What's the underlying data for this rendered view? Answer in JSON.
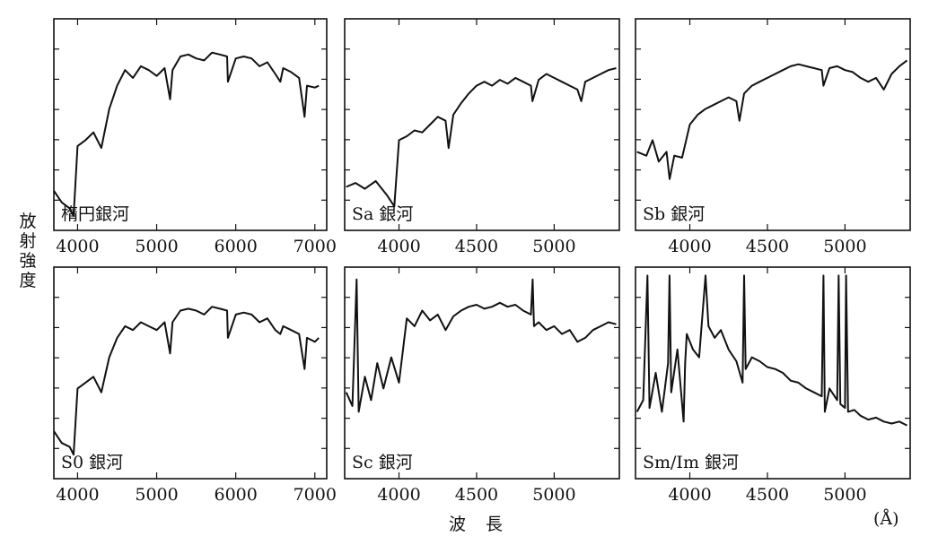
{
  "figure": {
    "ylabel_chars": [
      "放",
      "射",
      "強",
      "度"
    ],
    "xlabel": "波長",
    "xunit": "(Å)"
  },
  "chart_data": [
    {
      "type": "line",
      "label": "楕円銀河",
      "x_ticks": [
        "4000",
        "5000",
        "6000",
        "7000"
      ],
      "x_tick_values": [
        4000,
        5000,
        6000,
        7000
      ],
      "xlim": [
        3700,
        7150
      ],
      "ylim": [
        0,
        1
      ],
      "y_ticks": 6,
      "series": [
        {
          "x": [
            3700,
            3800,
            3900,
            3950,
            4000,
            4100,
            4200,
            4300,
            4400,
            4500,
            4600,
            4700,
            4800,
            4900,
            5000,
            5100,
            5170,
            5200,
            5300,
            5400,
            5500,
            5600,
            5700,
            5800,
            5890,
            5900,
            6000,
            6100,
            6200,
            6300,
            6400,
            6500,
            6563,
            6600,
            6700,
            6800,
            6870,
            6900,
            7000,
            7050
          ],
          "y": [
            0.16,
            0.1,
            0.07,
            0.03,
            0.39,
            0.42,
            0.46,
            0.38,
            0.58,
            0.7,
            0.78,
            0.74,
            0.8,
            0.78,
            0.75,
            0.79,
            0.63,
            0.78,
            0.85,
            0.86,
            0.84,
            0.83,
            0.87,
            0.86,
            0.85,
            0.72,
            0.84,
            0.85,
            0.84,
            0.8,
            0.82,
            0.76,
            0.72,
            0.79,
            0.77,
            0.74,
            0.54,
            0.7,
            0.69,
            0.7
          ]
        }
      ]
    },
    {
      "type": "line",
      "label": "Sa 銀河",
      "x_ticks": [
        "4000",
        "4500",
        "5000"
      ],
      "x_tick_values": [
        4000,
        4500,
        5000
      ],
      "xlim": [
        3650,
        5420
      ],
      "ylim": [
        0,
        1
      ],
      "y_ticks": 6,
      "series": [
        {
          "x": [
            3660,
            3720,
            3780,
            3850,
            3920,
            3970,
            4000,
            4050,
            4100,
            4150,
            4200,
            4250,
            4300,
            4320,
            4350,
            4400,
            4450,
            4500,
            4550,
            4600,
            4650,
            4700,
            4750,
            4800,
            4850,
            4860,
            4900,
            4950,
            5000,
            5050,
            5100,
            5150,
            5175,
            5200,
            5250,
            5300,
            5350,
            5400
          ],
          "y": [
            0.18,
            0.2,
            0.17,
            0.21,
            0.14,
            0.08,
            0.42,
            0.44,
            0.47,
            0.46,
            0.5,
            0.54,
            0.52,
            0.38,
            0.55,
            0.61,
            0.66,
            0.7,
            0.72,
            0.7,
            0.73,
            0.71,
            0.74,
            0.72,
            0.7,
            0.62,
            0.73,
            0.76,
            0.74,
            0.72,
            0.7,
            0.68,
            0.62,
            0.72,
            0.74,
            0.76,
            0.78,
            0.79
          ]
        }
      ]
    },
    {
      "type": "line",
      "label": "Sb 銀河",
      "x_ticks": [
        "4000",
        "4500",
        "5000"
      ],
      "x_tick_values": [
        4000,
        4500,
        5000
      ],
      "xlim": [
        3650,
        5420
      ],
      "ylim": [
        0,
        1
      ],
      "y_ticks": 6,
      "series": [
        {
          "x": [
            3660,
            3720,
            3760,
            3800,
            3850,
            3870,
            3900,
            3950,
            4000,
            4050,
            4100,
            4150,
            4200,
            4250,
            4300,
            4320,
            4350,
            4400,
            4450,
            4500,
            4550,
            4600,
            4650,
            4700,
            4750,
            4800,
            4850,
            4861,
            4900,
            4950,
            5000,
            5050,
            5100,
            5150,
            5200,
            5250,
            5300,
            5350,
            5400
          ],
          "y": [
            0.36,
            0.34,
            0.42,
            0.31,
            0.36,
            0.22,
            0.34,
            0.33,
            0.5,
            0.55,
            0.58,
            0.6,
            0.62,
            0.64,
            0.62,
            0.52,
            0.66,
            0.7,
            0.72,
            0.74,
            0.76,
            0.78,
            0.8,
            0.81,
            0.8,
            0.79,
            0.78,
            0.7,
            0.79,
            0.8,
            0.78,
            0.77,
            0.74,
            0.72,
            0.74,
            0.68,
            0.76,
            0.8,
            0.83
          ]
        }
      ]
    },
    {
      "type": "line",
      "label": "S0 銀河",
      "x_ticks": [
        "4000",
        "5000",
        "6000",
        "7000"
      ],
      "x_tick_values": [
        4000,
        5000,
        6000,
        7000
      ],
      "xlim": [
        3700,
        7150
      ],
      "ylim": [
        0,
        1
      ],
      "y_ticks": 6,
      "series": [
        {
          "x": [
            3700,
            3800,
            3900,
            3950,
            4000,
            4100,
            4200,
            4300,
            4400,
            4500,
            4600,
            4700,
            4800,
            4900,
            5000,
            5100,
            5170,
            5200,
            5300,
            5400,
            5500,
            5600,
            5700,
            5800,
            5890,
            5900,
            6000,
            6100,
            6200,
            6300,
            6400,
            6500,
            6563,
            6600,
            6700,
            6800,
            6870,
            6900,
            7000,
            7050
          ],
          "y": [
            0.2,
            0.14,
            0.12,
            0.08,
            0.42,
            0.45,
            0.48,
            0.4,
            0.58,
            0.68,
            0.74,
            0.72,
            0.76,
            0.74,
            0.72,
            0.76,
            0.6,
            0.76,
            0.82,
            0.83,
            0.82,
            0.8,
            0.84,
            0.83,
            0.82,
            0.68,
            0.8,
            0.81,
            0.8,
            0.76,
            0.78,
            0.72,
            0.7,
            0.74,
            0.72,
            0.7,
            0.52,
            0.68,
            0.66,
            0.68
          ]
        }
      ]
    },
    {
      "type": "line",
      "label": "Sc 銀河",
      "x_ticks": [
        "4000",
        "4500",
        "5000"
      ],
      "x_tick_values": [
        4000,
        4500,
        5000
      ],
      "xlim": [
        3650,
        5420
      ],
      "ylim": [
        0,
        1
      ],
      "y_ticks": 6,
      "series": [
        {
          "x": [
            3660,
            3700,
            3727,
            3740,
            3780,
            3820,
            3860,
            3900,
            3950,
            4000,
            4050,
            4100,
            4150,
            4200,
            4250,
            4300,
            4350,
            4400,
            4450,
            4500,
            4550,
            4600,
            4650,
            4700,
            4750,
            4800,
            4850,
            4861,
            4870,
            4900,
            4950,
            5000,
            5050,
            5100,
            5150,
            5200,
            5250,
            5300,
            5350,
            5400
          ],
          "y": [
            0.4,
            0.33,
            0.98,
            0.3,
            0.48,
            0.36,
            0.55,
            0.42,
            0.58,
            0.45,
            0.78,
            0.74,
            0.82,
            0.77,
            0.8,
            0.72,
            0.79,
            0.82,
            0.84,
            0.85,
            0.83,
            0.84,
            0.86,
            0.84,
            0.85,
            0.82,
            0.8,
            0.98,
            0.74,
            0.76,
            0.72,
            0.74,
            0.7,
            0.72,
            0.66,
            0.68,
            0.72,
            0.74,
            0.76,
            0.75
          ]
        }
      ]
    },
    {
      "type": "line",
      "label": "Sm/Im 銀河",
      "x_ticks": [
        "4000",
        "4500",
        "5000"
      ],
      "x_tick_values": [
        4000,
        4500,
        5000
      ],
      "xlim": [
        3650,
        5420
      ],
      "ylim": [
        0,
        1
      ],
      "y_ticks": 6,
      "series": [
        {
          "x": [
            3660,
            3700,
            3727,
            3740,
            3780,
            3820,
            3860,
            3869,
            3880,
            3920,
            3960,
            3970,
            3980,
            4020,
            4060,
            4101,
            4120,
            4160,
            4200,
            4250,
            4300,
            4340,
            4350,
            4360,
            4400,
            4450,
            4500,
            4550,
            4600,
            4650,
            4700,
            4750,
            4800,
            4850,
            4861,
            4870,
            4900,
            4950,
            4959,
            4970,
            5000,
            5007,
            5020,
            5060,
            5100,
            5150,
            5200,
            5250,
            5300,
            5350,
            5400
          ],
          "y": [
            0.3,
            0.36,
            1.0,
            0.32,
            0.5,
            0.3,
            0.55,
            1.0,
            0.4,
            0.62,
            0.25,
            0.55,
            0.7,
            0.62,
            0.58,
            1.0,
            0.74,
            0.68,
            0.72,
            0.62,
            0.56,
            0.45,
            1.0,
            0.52,
            0.58,
            0.56,
            0.53,
            0.52,
            0.5,
            0.46,
            0.45,
            0.42,
            0.4,
            0.38,
            1.0,
            0.3,
            0.42,
            0.36,
            1.0,
            0.34,
            0.32,
            1.0,
            0.3,
            0.31,
            0.28,
            0.26,
            0.27,
            0.25,
            0.24,
            0.25,
            0.23
          ]
        }
      ]
    }
  ]
}
